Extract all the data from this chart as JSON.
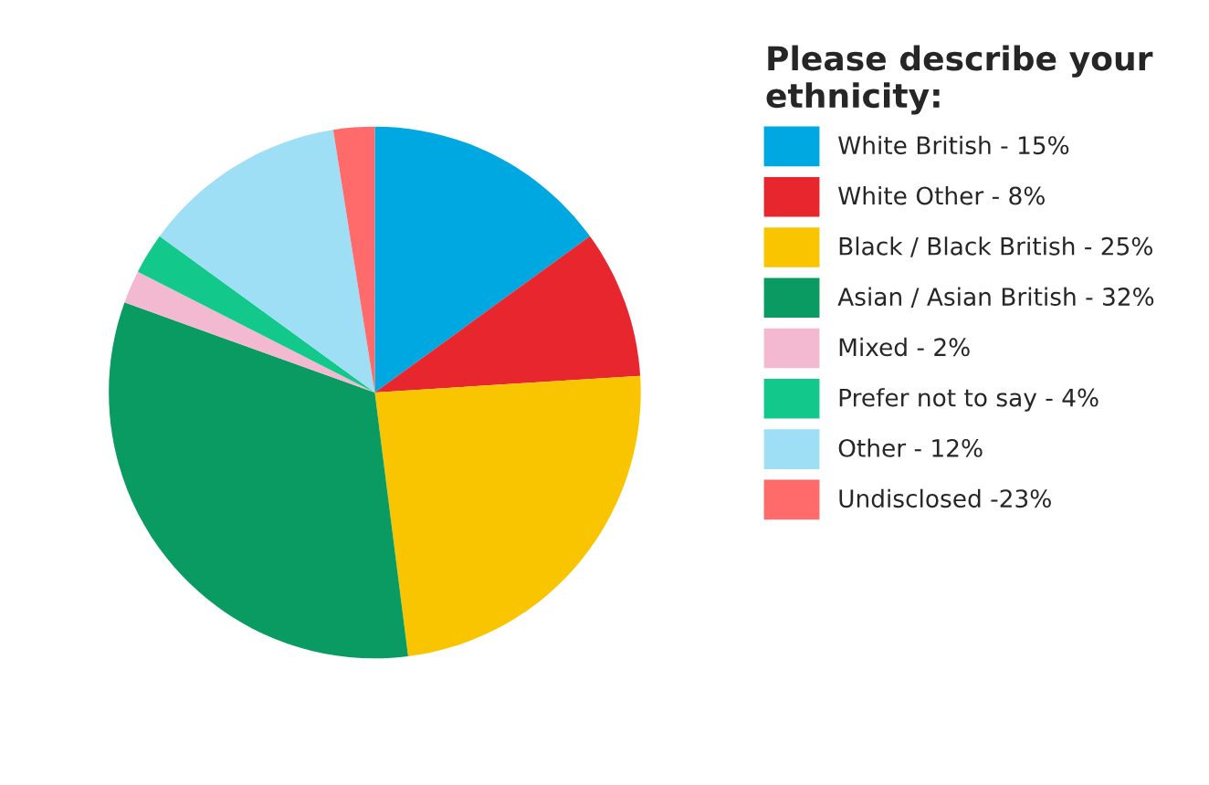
{
  "chart_data": {
    "type": "pie",
    "legend_title": "Please describe your\nethnicity:",
    "categories": [
      "White British - 15%",
      "White Other - 8%",
      "Black / Black British - 25%",
      "Asian / Asian British - 32%",
      "Mixed - 2%",
      "Prefer not to say - 4%",
      "Other - 12%",
      "Undisclosed -23%"
    ],
    "values": [
      15,
      9,
      24,
      32.5,
      2,
      2.5,
      12.5,
      2.5
    ],
    "colors": [
      "#00a8e1",
      "#e8262d",
      "#f8c500",
      "#0a9b63",
      "#f2b9d1",
      "#12c98b",
      "#9fdff6",
      "#ff6b6b"
    ],
    "legend": "right"
  }
}
